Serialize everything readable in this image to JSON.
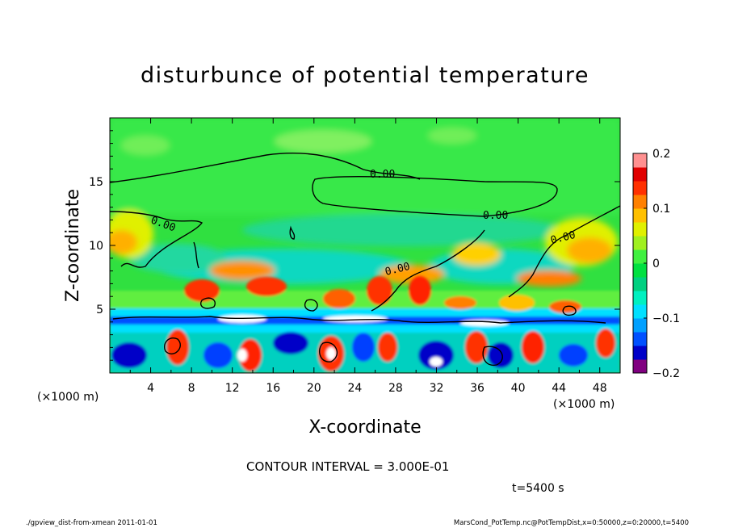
{
  "chart_data": {
    "type": "heatmap",
    "title": "disturbunce of potential temperature",
    "xlabel": "X-coordinate",
    "ylabel": "Z-coordinate",
    "x_unit": "(×1000 m)",
    "y_unit": "(×1000 m)",
    "xlim": [
      0,
      50
    ],
    "ylim": [
      0,
      20
    ],
    "x_ticks": [
      4,
      8,
      12,
      16,
      20,
      24,
      28,
      32,
      36,
      40,
      44,
      48
    ],
    "y_ticks": [
      5,
      10,
      15
    ],
    "colorbar": {
      "min": -0.2,
      "max": 0.2,
      "tick_labels": [
        "0.2",
        "0.1",
        "0",
        "−0.1",
        "−0.2"
      ],
      "tick_values": [
        0.2,
        0.1,
        0,
        -0.1,
        -0.2
      ],
      "colors": [
        "#800080",
        "#0000c8",
        "#0050ff",
        "#00a0ff",
        "#00e0ff",
        "#00f0c0",
        "#00d080",
        "#00e040",
        "#40f040",
        "#a0f020",
        "#e0f000",
        "#ffc000",
        "#ff8000",
        "#ff3000",
        "#e00000",
        "#ff9090"
      ]
    },
    "contour_label": "0.00",
    "contour_interval": "CONTOUR INTERVAL = 3.000E-01",
    "time": "t=5400 s"
  },
  "footer": {
    "left": "./gpview_dist-from-xmean  2011-01-01",
    "right": "MarsCond_PotTemp.nc@PotTempDist,x=0:50000,z=0:20000,t=5400"
  }
}
